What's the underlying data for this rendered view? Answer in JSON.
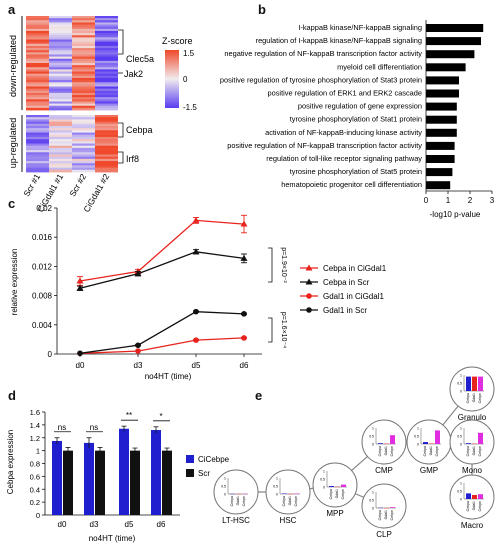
{
  "panels": {
    "a": "a",
    "b": "b",
    "c": "c",
    "d": "d",
    "e": "e"
  },
  "colors": {
    "heat_low": "#5a3cf0",
    "heat_mid": "#f1ecef",
    "heat_high": "#f0482a",
    "red": "#e8221c",
    "black": "#111111",
    "blue": "#1f1fcf",
    "magenta": "#e02de0"
  },
  "chart_data": [
    {
      "panel": "a",
      "type": "heatmap",
      "columns": [
        "Scr #1",
        "CiGdal1 #1",
        "Scr #2",
        "CiGdal1 #2"
      ],
      "row_groups": [
        "down-regulated",
        "up-regulated"
      ],
      "gene_labels": [
        "Clec5a",
        "Jak2",
        "Cebpa",
        "Irf8"
      ],
      "colorbar": {
        "title": "Z-score",
        "ticks": [
          "1.5",
          "0",
          "-1.5"
        ]
      }
    },
    {
      "panel": "b",
      "type": "bar",
      "orientation": "horizontal",
      "categories": [
        "I-kappaB kinase/NF-kappaB signaling",
        "regulation of I-kappaB kinase/NF-kappaB signaling",
        "negative regulation of NF-kappaB transcription factor activity",
        "myeloid cell differentiation",
        "positive regulation of tyrosine phosphorylation of Stat3 protein",
        "positive regulation of ERK1 and ERK2 cascade",
        "positive regulation of gene expression",
        "tyrosine phosphorylation of Stat1 protein",
        "activation of NF-kappaB-inducing kinase activity",
        "positive regulation of NF-kappaB transcription factor activity",
        "regulation of toll-like receptor signaling pathway",
        "tyrosine phosphorylation of Stat5 protein",
        "hematopoietic progenitor cell differentiation"
      ],
      "values": [
        2.6,
        2.5,
        2.2,
        1.8,
        1.5,
        1.5,
        1.4,
        1.4,
        1.4,
        1.3,
        1.3,
        1.2,
        1.1
      ],
      "xlabel": "-log10 p-value",
      "xticks": [
        "0",
        "1",
        "2",
        "3"
      ],
      "xlim": [
        0,
        3
      ]
    },
    {
      "panel": "c",
      "type": "line",
      "x": [
        "d0",
        "d3",
        "d5",
        "d6"
      ],
      "xlabel": "no4HT (time)",
      "ylabel": "relative expression",
      "ylim": [
        0,
        0.02
      ],
      "yticks": [
        "0",
        "0.004",
        "0.008",
        "0.012",
        "0.016",
        "0.02"
      ],
      "series": [
        {
          "name": "Cebpa in CiGdal1",
          "values": [
            0.01,
            0.0113,
            0.0183,
            0.0178
          ],
          "errors": [
            0.0006,
            0.0003,
            0.0004,
            0.0012
          ],
          "marker": "triangle",
          "color": "#e8221c"
        },
        {
          "name": "Cebpa in Scr",
          "values": [
            0.009,
            0.011,
            0.014,
            0.0131
          ],
          "errors": [
            0.0003,
            0.0003,
            0.0003,
            0.0006
          ],
          "marker": "triangle",
          "color": "#111111"
        },
        {
          "name": "Gdal1 in CiGdal1",
          "values": [
            0.0001,
            0.0004,
            0.0019,
            0.0022
          ],
          "errors": [
            0,
            0,
            0.0001,
            0.0001
          ],
          "marker": "circle",
          "color": "#e8221c"
        },
        {
          "name": "Gdal1 in Scr",
          "values": [
            0.0001,
            0.0012,
            0.0058,
            0.0055
          ],
          "errors": [
            0,
            0.0001,
            0.0001,
            0.0001
          ],
          "marker": "circle",
          "color": "#111111"
        }
      ],
      "annotations": [
        "p=1.9×10⁻²",
        "p=1.6×10⁻⁴"
      ]
    },
    {
      "panel": "d",
      "type": "bar",
      "categories": [
        "d0",
        "d3",
        "d5",
        "d6"
      ],
      "xlabel": "no4HT (time)",
      "ylabel": "Cebpa expression",
      "ylim": [
        0,
        1.6
      ],
      "yticks": [
        "0",
        "0.2",
        "0.4",
        "0.6",
        "0.8",
        "1",
        "1.2",
        "1.4",
        "1.6"
      ],
      "series": [
        {
          "name": "CiCebpe",
          "values": [
            1.15,
            1.12,
            1.34,
            1.32
          ],
          "errors": [
            0.05,
            0.08,
            0.04,
            0.05
          ],
          "color": "#1f1fcf"
        },
        {
          "name": "Scr",
          "values": [
            1.0,
            1.0,
            1.0,
            1.0
          ],
          "errors": [
            0.05,
            0.05,
            0.04,
            0.04
          ],
          "color": "#111111"
        }
      ],
      "significance": [
        "ns",
        "ns",
        "**",
        "*"
      ]
    },
    {
      "panel": "e",
      "type": "bar",
      "tree_nodes": [
        "LT-HSC",
        "HSC",
        "MPP",
        "CMP",
        "CLP",
        "GMP",
        "Granulo",
        "Mono",
        "Macro"
      ],
      "series_names": [
        "Cebpa",
        "Gdal1",
        "Cebpe"
      ],
      "mini_ticks": [
        "1",
        "0.5",
        "0"
      ],
      "values": {
        "LT-HSC": [
          0.01,
          0.01,
          0.01
        ],
        "HSC": [
          0.03,
          0.01,
          0.03
        ],
        "MPP": [
          0.06,
          0.02,
          0.15
        ],
        "CMP": [
          0.05,
          0.02,
          0.55
        ],
        "CLP": [
          0.02,
          0.01,
          0.05
        ],
        "GMP": [
          0.12,
          0.03,
          0.85
        ],
        "Granulo": [
          0.9,
          0.9,
          0.9
        ],
        "Mono": [
          0.05,
          0.02,
          0.7
        ],
        "Macro": [
          0.35,
          0.25,
          0.3
        ]
      }
    }
  ]
}
